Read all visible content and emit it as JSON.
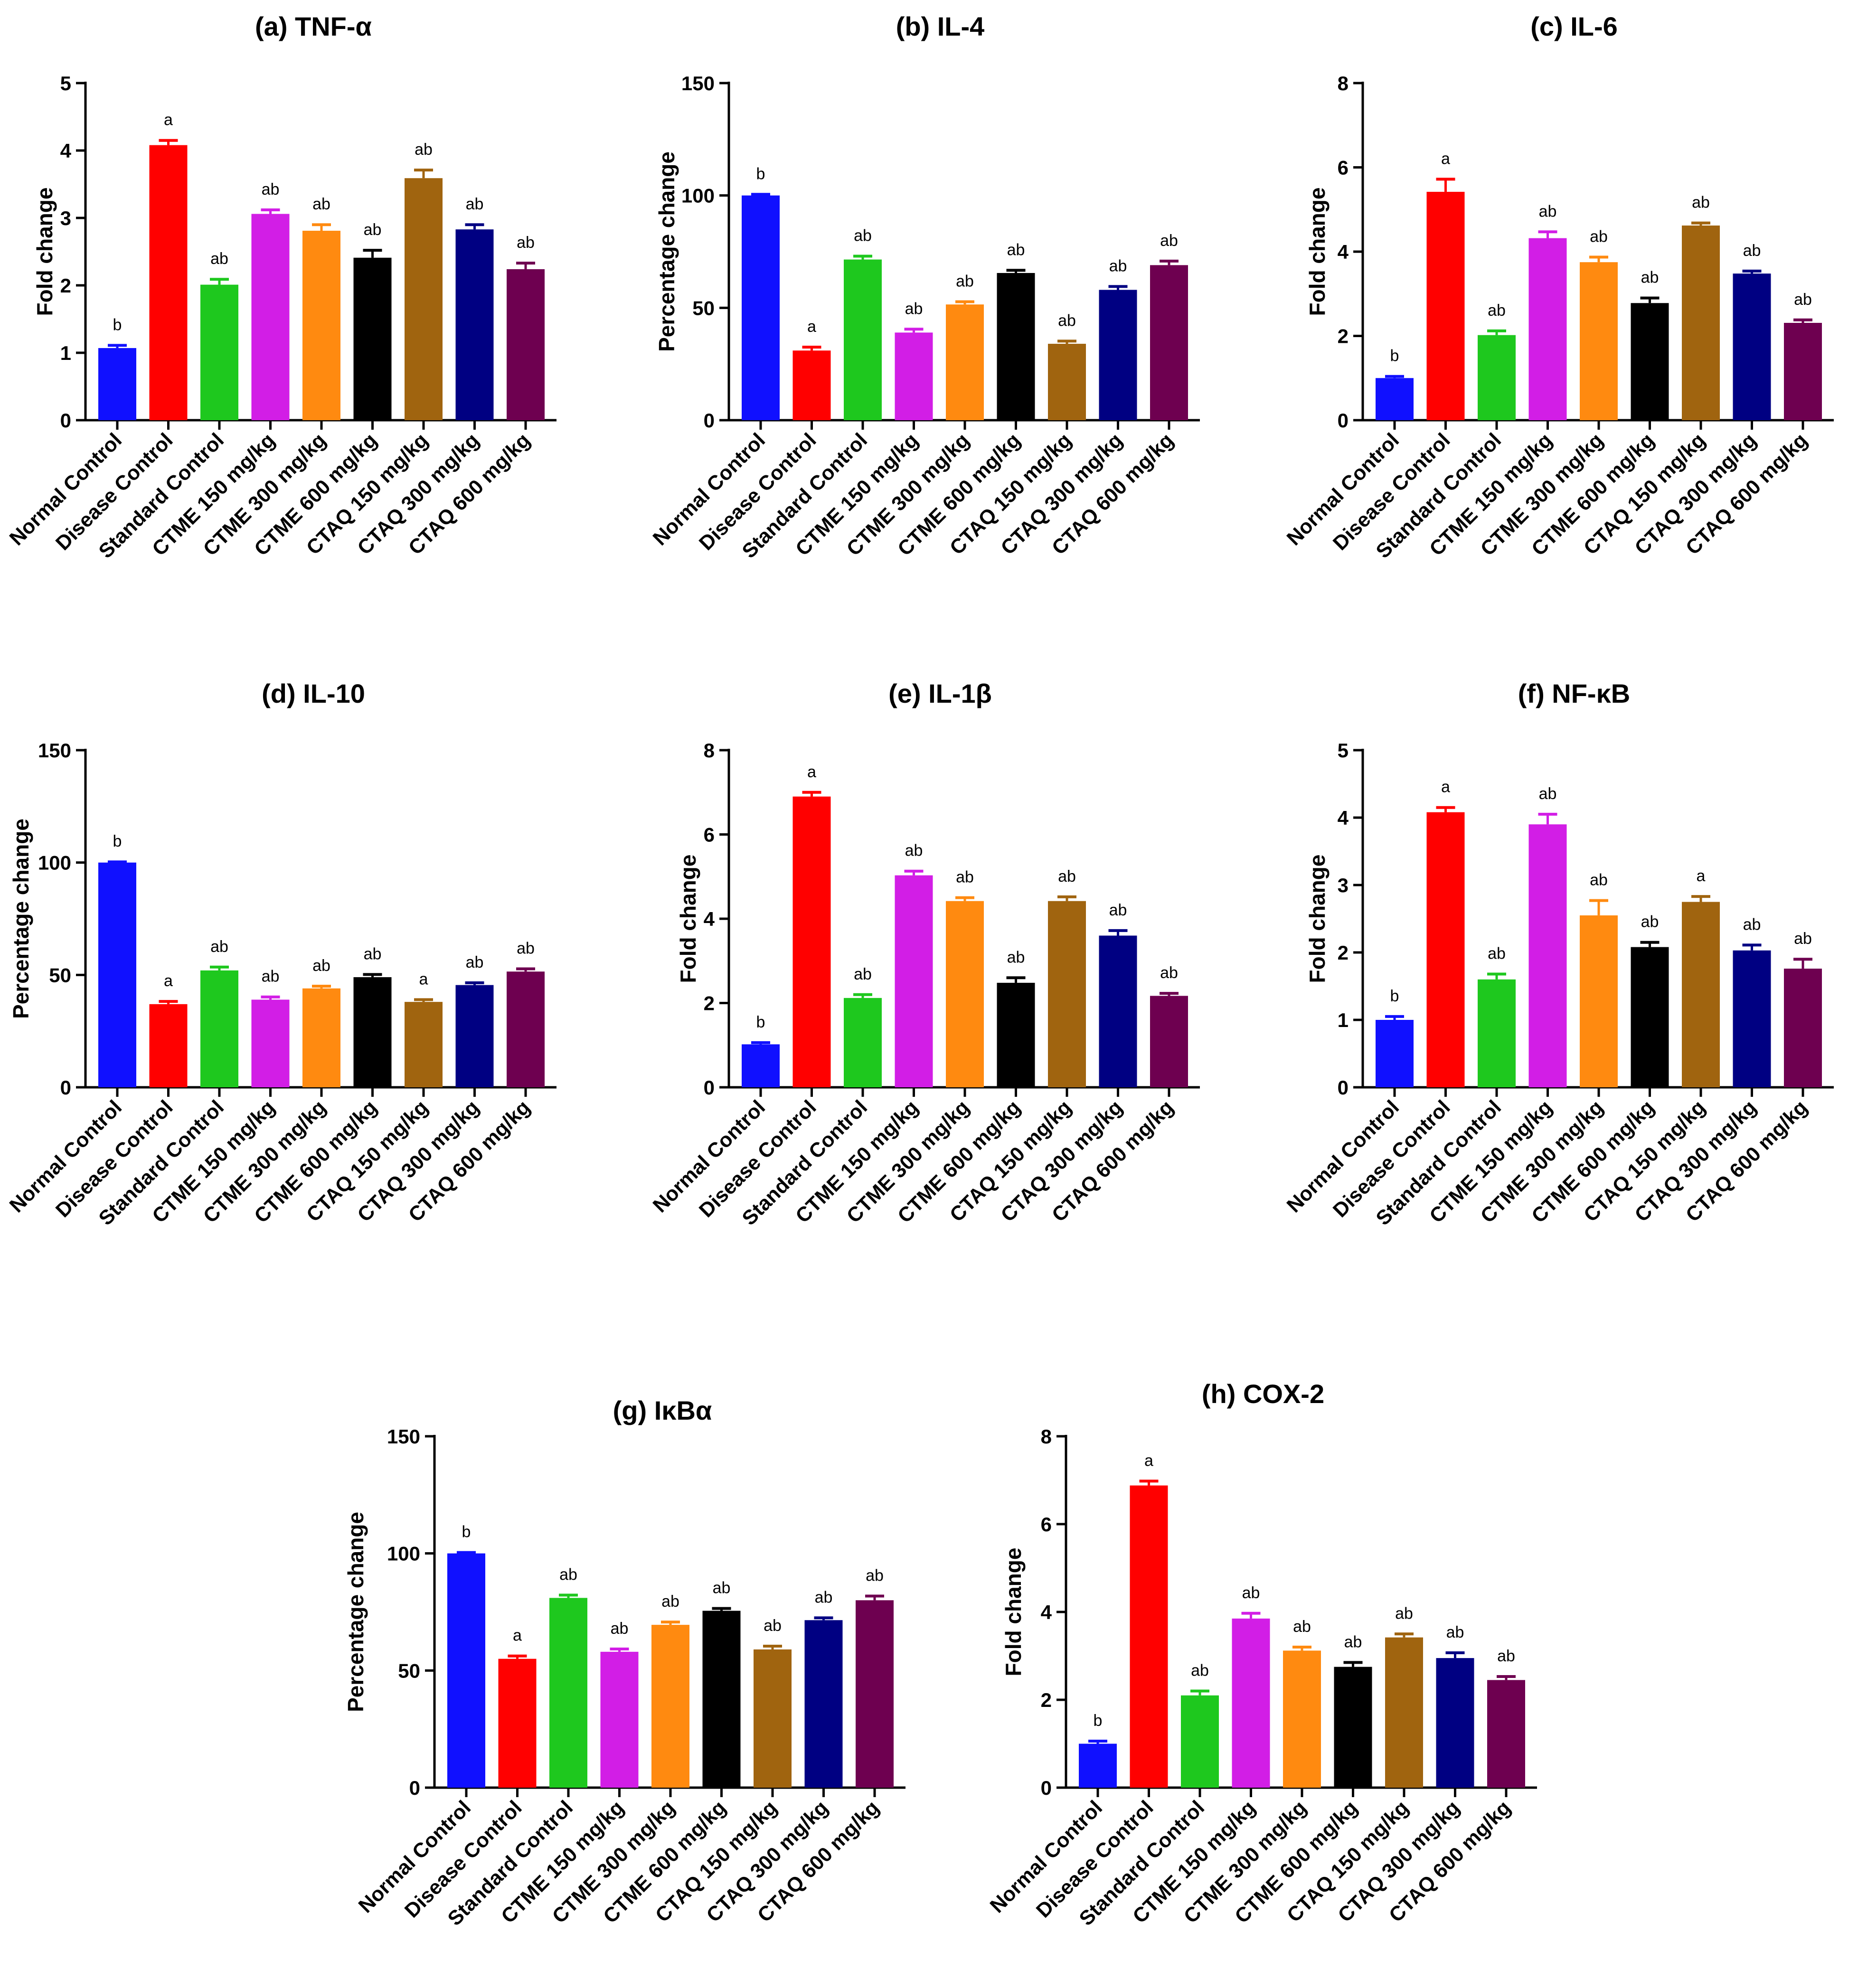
{
  "categories": [
    "Normal Control",
    "Disease Control",
    "Standard Control",
    "CTME 150 mg/kg",
    "CTME 300 mg/kg",
    "CTME 600 mg/kg",
    "CTAQ 150 mg/kg",
    "CTAQ 300 mg/kg",
    "CTAQ 600 mg/kg"
  ],
  "colors": [
    "#1010ff",
    "#ff0000",
    "#1ec81e",
    "#d21ee6",
    "#ff8a10",
    "#000000",
    "#a0640f",
    "#000082",
    "#6e0050"
  ],
  "chart_data": [
    {
      "type": "bar",
      "title": "(a) TNF-α",
      "ylabel": "Fold change",
      "ylim": [
        0,
        5
      ],
      "yticks": [
        0,
        1,
        2,
        3,
        4,
        5
      ],
      "values": [
        1.07,
        4.08,
        2.01,
        3.06,
        2.81,
        2.41,
        3.59,
        2.83,
        2.24
      ],
      "errors": [
        0.04,
        0.07,
        0.08,
        0.06,
        0.09,
        0.11,
        0.12,
        0.07,
        0.09
      ],
      "labels": [
        "b",
        "a",
        "ab",
        "ab",
        "ab",
        "ab",
        "ab",
        "ab",
        "ab"
      ]
    },
    {
      "type": "bar",
      "title": "(b) IL-4",
      "ylabel": "Percentage change",
      "ylim": [
        0,
        150
      ],
      "yticks": [
        0,
        50,
        100,
        150
      ],
      "values": [
        100,
        31,
        71.5,
        39,
        51.5,
        65.5,
        34,
        58,
        69
      ],
      "errors": [
        0.5,
        1.5,
        1.5,
        1.5,
        1.2,
        1.2,
        1.2,
        1.5,
        1.8
      ],
      "labels": [
        "b",
        "a",
        "ab",
        "ab",
        "ab",
        "ab",
        "ab",
        "ab",
        "ab"
      ]
    },
    {
      "type": "bar",
      "title": "(c) IL-6",
      "ylabel": "Fold change",
      "ylim": [
        0,
        8
      ],
      "yticks": [
        0,
        2,
        4,
        6,
        8
      ],
      "values": [
        1.0,
        5.42,
        2.02,
        4.32,
        3.75,
        2.78,
        4.62,
        3.48,
        2.31
      ],
      "errors": [
        0.04,
        0.3,
        0.1,
        0.15,
        0.12,
        0.12,
        0.06,
        0.06,
        0.07
      ],
      "labels": [
        "b",
        "a",
        "ab",
        "ab",
        "ab",
        "ab",
        "ab",
        "ab",
        "ab"
      ]
    },
    {
      "type": "bar",
      "title": "(d) IL-10",
      "ylabel": "Percentage change",
      "ylim": [
        0,
        150
      ],
      "yticks": [
        0,
        50,
        100,
        150
      ],
      "values": [
        100,
        37,
        52,
        39,
        44,
        49,
        38,
        45.5,
        51.5
      ],
      "errors": [
        0.3,
        1.2,
        1.5,
        1.2,
        1.0,
        1.2,
        1.0,
        1.0,
        1.2
      ],
      "labels": [
        "b",
        "a",
        "ab",
        "ab",
        "ab",
        "ab",
        "a",
        "ab",
        "ab"
      ]
    },
    {
      "type": "bar",
      "title": "(e) IL-1β",
      "ylabel": "Fold change",
      "ylim": [
        0,
        8
      ],
      "yticks": [
        0,
        2,
        4,
        6,
        8
      ],
      "values": [
        1.02,
        6.9,
        2.12,
        5.03,
        4.42,
        2.48,
        4.42,
        3.6,
        2.17
      ],
      "errors": [
        0.04,
        0.1,
        0.08,
        0.1,
        0.08,
        0.12,
        0.1,
        0.12,
        0.06
      ],
      "labels": [
        "b",
        "a",
        "ab",
        "ab",
        "ab",
        "ab",
        "ab",
        "ab",
        "ab"
      ]
    },
    {
      "type": "bar",
      "title": "(f) NF-κB",
      "ylabel": "Fold change",
      "ylim": [
        0,
        5
      ],
      "yticks": [
        0,
        1,
        2,
        3,
        4,
        5
      ],
      "values": [
        1.0,
        4.08,
        1.6,
        3.9,
        2.55,
        2.08,
        2.75,
        2.03,
        1.76
      ],
      "errors": [
        0.05,
        0.07,
        0.08,
        0.15,
        0.22,
        0.07,
        0.08,
        0.08,
        0.14
      ],
      "labels": [
        "b",
        "a",
        "ab",
        "ab",
        "ab",
        "ab",
        "a",
        "ab",
        "ab"
      ]
    },
    {
      "type": "bar",
      "title": "(g) IκBα",
      "ylabel": "Percentage change",
      "ylim": [
        0,
        150
      ],
      "yticks": [
        0,
        50,
        100,
        150
      ],
      "values": [
        100,
        55,
        81,
        58,
        69.5,
        75.5,
        59,
        71.5,
        80
      ],
      "errors": [
        0.4,
        1.2,
        1.2,
        1.2,
        1.2,
        1.0,
        1.4,
        1.0,
        1.8
      ],
      "labels": [
        "b",
        "a",
        "ab",
        "ab",
        "ab",
        "ab",
        "ab",
        "ab",
        "ab"
      ]
    },
    {
      "type": "bar",
      "title": "(h) COX-2",
      "ylabel": "Fold change",
      "ylim": [
        0,
        8
      ],
      "yticks": [
        0,
        2,
        4,
        6,
        8
      ],
      "values": [
        1.0,
        6.88,
        2.1,
        3.85,
        3.12,
        2.75,
        3.42,
        2.95,
        2.45
      ],
      "errors": [
        0.06,
        0.1,
        0.1,
        0.12,
        0.08,
        0.1,
        0.08,
        0.12,
        0.08
      ],
      "labels": [
        "b",
        "a",
        "ab",
        "ab",
        "ab",
        "ab",
        "ab",
        "ab",
        "ab"
      ]
    }
  ]
}
